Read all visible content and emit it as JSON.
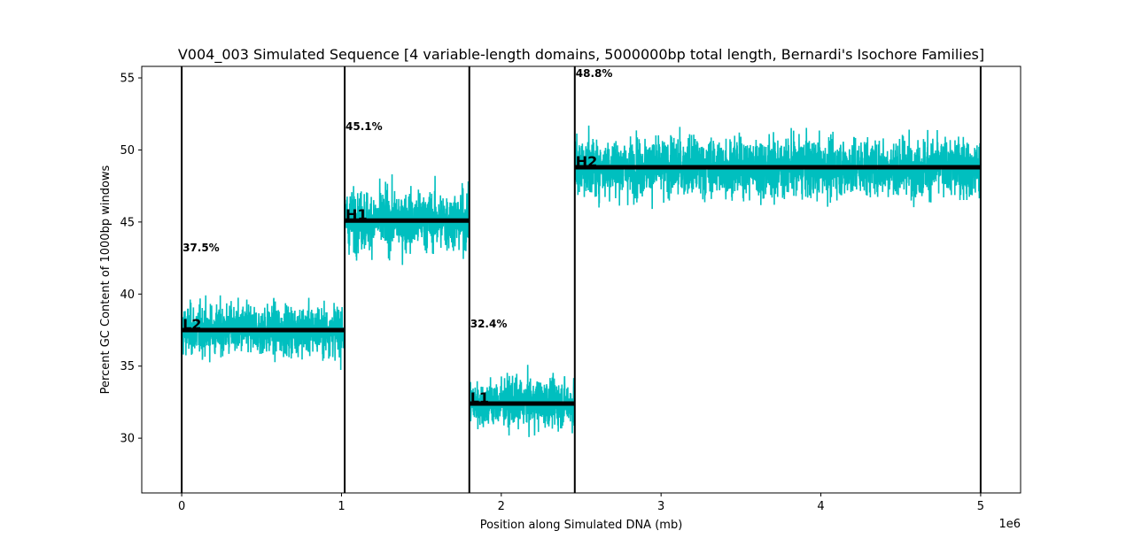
{
  "chart_data": {
    "type": "line",
    "title": "V004_003 Simulated Sequence [4 variable-length domains, 5000000bp total length, Bernardi's Isochore Families]",
    "xlabel": "Position along Simulated DNA (mb)",
    "ylabel": "Percent GC Content of 1000bp windows",
    "x_offset_label": "1e6",
    "xlim": [
      -250000,
      5250000
    ],
    "ylim": [
      26.2,
      55.8
    ],
    "x_ticks": [
      0,
      1000000,
      2000000,
      3000000,
      4000000,
      5000000
    ],
    "x_tick_labels": [
      "0",
      "1",
      "2",
      "3",
      "4",
      "5"
    ],
    "y_ticks": [
      30,
      35,
      40,
      45,
      50,
      55
    ],
    "y_tick_labels": [
      "30",
      "35",
      "40",
      "45",
      "50",
      "55"
    ],
    "grid": false,
    "window_bp": 1000,
    "series_color": "#00bfbf",
    "domains": [
      {
        "family": "L2",
        "start": 0,
        "end": 1020000,
        "mean_gc": 37.5,
        "label": "37.5%",
        "gc_min": 33.0,
        "gc_max": 42.3
      },
      {
        "family": "H1",
        "start": 1020000,
        "end": 1800000,
        "mean_gc": 45.1,
        "label": "45.1%",
        "gc_min": 40.1,
        "gc_max": 50.7
      },
      {
        "family": "L1",
        "start": 1800000,
        "end": 2460000,
        "mean_gc": 32.4,
        "label": "32.4%",
        "gc_min": 27.5,
        "gc_max": 37.0
      },
      {
        "family": "H2",
        "start": 2460000,
        "end": 5000000,
        "mean_gc": 48.8,
        "label": "48.8%",
        "gc_min": 43.5,
        "gc_max": 54.4
      }
    ]
  }
}
